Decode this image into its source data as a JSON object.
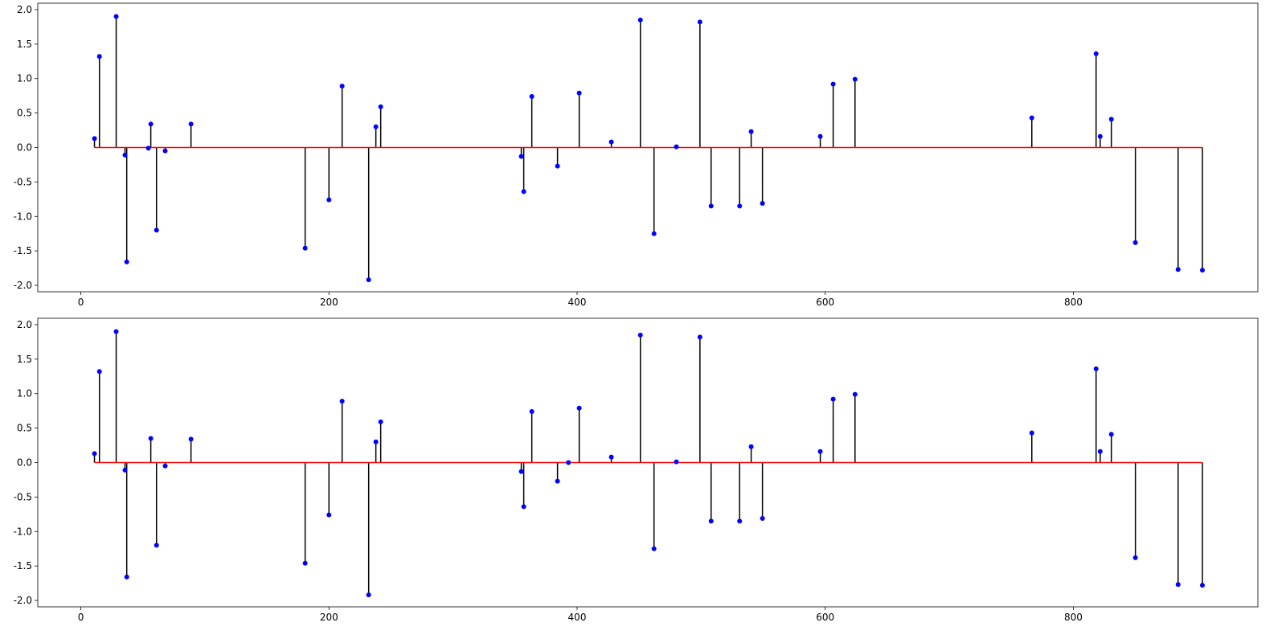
{
  "chart_data": [
    {
      "type": "stem",
      "x": [
        11,
        15,
        28.5,
        35.6,
        37,
        54.4,
        56.4,
        61,
        68,
        88.8,
        180.8,
        200,
        210.6,
        232,
        237.8,
        241.7,
        355,
        357,
        363.5,
        384.2,
        401.7,
        427.6,
        451,
        462,
        480,
        499,
        508,
        531,
        540.3,
        549.4,
        596,
        606.4,
        624,
        766.5,
        818.3,
        821.6,
        830.6,
        850,
        884.4,
        904
      ],
      "values": [
        0.13,
        1.32,
        1.9,
        -0.11,
        -1.66,
        -0.01,
        0.34,
        -1.2,
        -0.05,
        0.34,
        -1.46,
        -0.76,
        0.89,
        -1.92,
        0.3,
        0.59,
        -0.13,
        -0.64,
        0.74,
        -0.27,
        0.79,
        0.08,
        1.85,
        -1.25,
        0.01,
        1.82,
        -0.85,
        -0.85,
        0.23,
        -0.81,
        0.16,
        0.92,
        0.99,
        0.43,
        1.36,
        0.16,
        0.41,
        -1.38,
        -1.77,
        -1.78
      ],
      "color": "#0000ff",
      "stem_color": "#000000",
      "baseline_color": "#ff0000",
      "xlim": [
        -34.7,
        948.7
      ],
      "ylim": [
        -2.093,
        2.093
      ],
      "xticks": [
        0,
        200,
        400,
        600,
        800
      ],
      "yticks": [
        {
          "value": -2,
          "label": "-2.0"
        },
        -1.5,
        {
          "value": -1,
          "label": "-1.0"
        },
        -0.5,
        {
          "value": 0,
          "label": "0.0"
        },
        0.5,
        {
          "value": 1,
          "label": "1.0"
        },
        1.5,
        {
          "value": 2,
          "label": "2.0"
        }
      ]
    },
    {
      "type": "stem",
      "x": [
        11,
        15,
        28.5,
        35.6,
        37,
        56.4,
        61,
        68,
        88.8,
        180.8,
        200,
        210.6,
        232,
        237.8,
        241.7,
        355,
        357,
        363.5,
        384.2,
        393,
        401.7,
        427.6,
        451,
        462,
        480,
        499,
        508,
        531,
        540.3,
        549.4,
        596,
        606.4,
        624,
        766.5,
        818.3,
        821.6,
        830.6,
        850,
        884.4,
        904
      ],
      "values": [
        0.13,
        1.32,
        1.9,
        -0.11,
        -1.66,
        0.35,
        -1.2,
        -0.05,
        0.34,
        -1.46,
        -0.76,
        0.89,
        -1.92,
        0.3,
        0.59,
        -0.13,
        -0.64,
        0.74,
        -0.27,
        0.0,
        0.79,
        0.08,
        1.85,
        -1.25,
        0.01,
        1.82,
        -0.85,
        -0.85,
        0.23,
        -0.81,
        0.16,
        0.92,
        0.99,
        0.43,
        1.36,
        0.16,
        0.41,
        -1.38,
        -1.77,
        -1.78
      ],
      "color": "#0000ff",
      "stem_color": "#000000",
      "baseline_color": "#ff0000",
      "xlim": [
        -34.7,
        948.7
      ],
      "ylim": [
        -2.093,
        2.093
      ],
      "xticks": [
        0,
        200,
        400,
        600,
        800
      ],
      "yticks": [
        {
          "value": -2,
          "label": "-2.0"
        },
        -1.5,
        {
          "value": -1,
          "label": "-1.0"
        },
        -0.5,
        {
          "value": 0,
          "label": "0.0"
        },
        0.5,
        {
          "value": 1,
          "label": "1.0"
        },
        1.5,
        {
          "value": 2,
          "label": "2.0"
        }
      ]
    }
  ]
}
